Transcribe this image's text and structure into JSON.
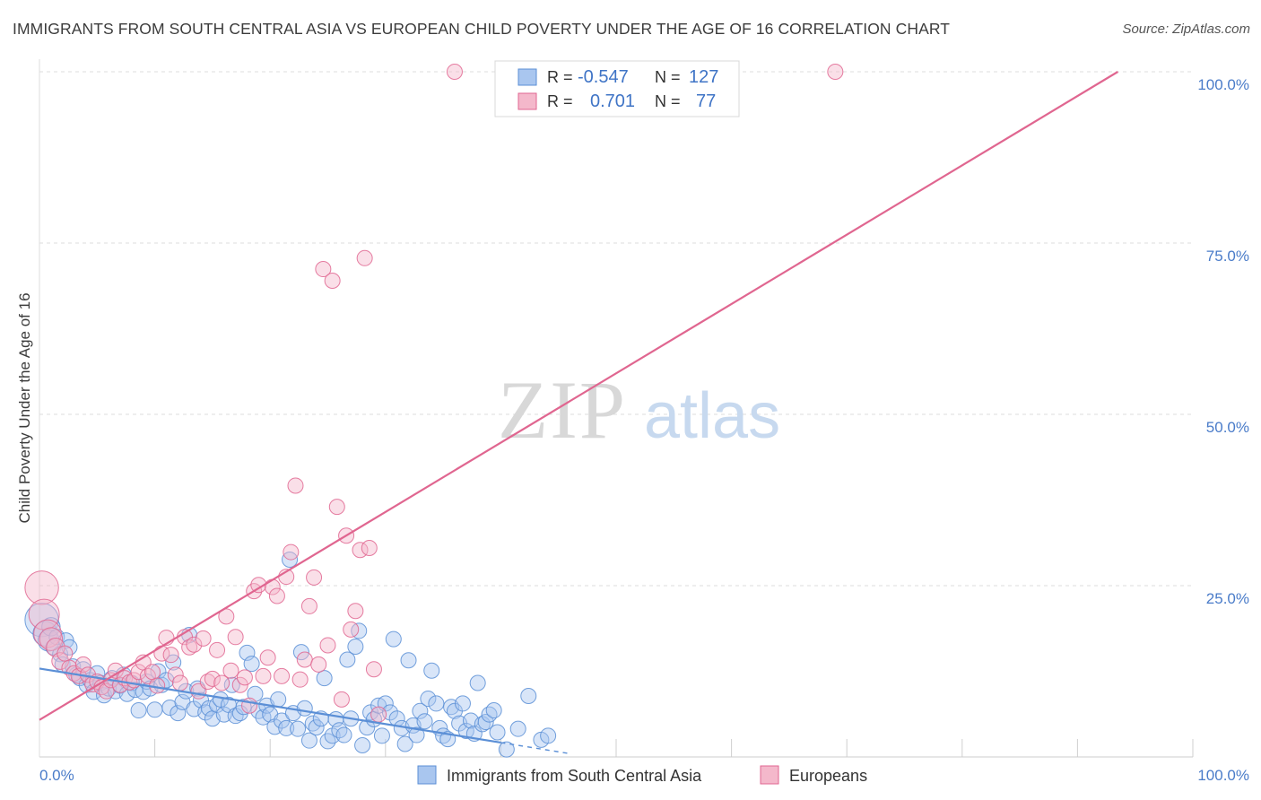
{
  "title": "IMMIGRANTS FROM SOUTH CENTRAL ASIA VS EUROPEAN CHILD POVERTY UNDER THE AGE OF 16 CORRELATION CHART",
  "source": "Source: ZipAtlas.com",
  "watermark": {
    "zip": "ZIP",
    "atlas": "atlas"
  },
  "colors": {
    "blue": "#5b8fd6",
    "blue_fill": "#a9c6ef",
    "pink": "#e06690",
    "pink_fill": "#f4b8cb",
    "axis_text": "#4a7cc9",
    "grid": "#dddddd"
  },
  "chart_data": {
    "type": "scatter",
    "ylabel": "Child Poverty Under the Age of 16",
    "xlabel": "",
    "xlim": [
      0,
      100
    ],
    "ylim": [
      0,
      100
    ],
    "x_tick_labels": [
      "0.0%",
      "100.0%"
    ],
    "y_ticks": [
      25,
      50,
      75,
      100
    ],
    "y_tick_labels": [
      "25.0%",
      "50.0%",
      "75.0%",
      "100.0%"
    ],
    "grid": true,
    "legend_position": "top-center",
    "stats": [
      {
        "r_label": "R =",
        "r": "-0.547",
        "n_label": "N =",
        "n": "127"
      },
      {
        "r_label": "R =",
        "r": "0.701",
        "n_label": "N =",
        "n": "77"
      }
    ],
    "series": [
      {
        "name": "Immigrants from South Central Asia",
        "color": "#5b8fd6",
        "trend": {
          "x": [
            0,
            40
          ],
          "y": [
            12.9,
            2.1
          ],
          "dashed_to_x": 46
        },
        "points": [
          [
            0.2,
            20,
            2.2
          ],
          [
            0.5,
            18,
            1.6
          ],
          [
            0.8,
            17,
            1.4
          ],
          [
            1,
            19,
            1.2
          ],
          [
            1.2,
            16,
            1
          ],
          [
            1.5,
            17.5,
            1
          ],
          [
            1.8,
            15,
            1
          ],
          [
            2,
            13.5,
            1
          ],
          [
            2.3,
            17,
            1
          ],
          [
            2.6,
            16,
            1
          ],
          [
            2.9,
            13.2,
            1
          ],
          [
            3.2,
            12,
            1
          ],
          [
            3.5,
            11.5,
            1
          ],
          [
            3.8,
            12.8,
            1
          ],
          [
            4.1,
            10.5,
            1
          ],
          [
            4.4,
            11.2,
            1
          ],
          [
            4.7,
            9.5,
            1
          ],
          [
            5,
            12.2,
            1
          ],
          [
            5.3,
            10.8,
            1
          ],
          [
            5.6,
            9,
            1
          ],
          [
            6,
            10,
            1
          ],
          [
            6.3,
            11.5,
            1
          ],
          [
            6.6,
            9.6,
            1
          ],
          [
            7,
            10.4,
            1
          ],
          [
            7.3,
            12,
            1
          ],
          [
            7.6,
            9.2,
            1
          ],
          [
            8,
            10.8,
            1
          ],
          [
            8.3,
            9.8,
            1
          ],
          [
            8.6,
            6.8,
            1
          ],
          [
            9,
            9.5,
            1
          ],
          [
            9.3,
            11,
            1
          ],
          [
            9.6,
            10,
            1
          ],
          [
            10,
            6.9,
            1
          ],
          [
            10.3,
            12.5,
            1
          ],
          [
            10.6,
            10.5,
            1
          ],
          [
            11,
            11.2,
            1
          ],
          [
            11.3,
            7.2,
            1
          ],
          [
            11.6,
            13.8,
            1
          ],
          [
            12,
            6.4,
            1
          ],
          [
            12.4,
            8,
            1
          ],
          [
            12.7,
            9.6,
            1
          ],
          [
            13,
            17.8,
            1
          ],
          [
            13.4,
            7,
            1
          ],
          [
            13.7,
            10,
            1
          ],
          [
            14,
            8.3,
            1
          ],
          [
            14.4,
            6.5,
            1
          ],
          [
            14.7,
            7.1,
            1
          ],
          [
            15,
            5.6,
            1
          ],
          [
            15.4,
            7.6,
            1
          ],
          [
            15.7,
            8.4,
            1
          ],
          [
            16,
            6.2,
            1
          ],
          [
            16.4,
            7.6,
            1
          ],
          [
            16.7,
            10.5,
            1
          ],
          [
            17,
            6,
            1
          ],
          [
            17.4,
            6.4,
            1
          ],
          [
            17.7,
            7.3,
            1
          ],
          [
            18,
            15.2,
            1
          ],
          [
            18.4,
            13.6,
            1
          ],
          [
            18.7,
            9.2,
            1
          ],
          [
            19,
            6.7,
            1
          ],
          [
            19.4,
            5.8,
            1
          ],
          [
            19.7,
            7.5,
            1
          ],
          [
            20,
            6.2,
            1
          ],
          [
            20.4,
            4.4,
            1
          ],
          [
            20.7,
            8.4,
            1
          ],
          [
            21,
            5.3,
            1
          ],
          [
            21.4,
            4.2,
            1
          ],
          [
            21.7,
            28.8,
            1
          ],
          [
            22,
            6.4,
            1
          ],
          [
            22.4,
            4.1,
            1
          ],
          [
            22.7,
            15.3,
            1
          ],
          [
            23,
            7.1,
            1
          ],
          [
            23.4,
            2.4,
            1
          ],
          [
            23.7,
            4.9,
            1
          ],
          [
            24,
            4.3,
            1
          ],
          [
            24.4,
            5.6,
            1
          ],
          [
            24.7,
            11.5,
            1
          ],
          [
            25,
            2.3,
            1
          ],
          [
            25.4,
            3.1,
            1
          ],
          [
            25.7,
            5.5,
            1
          ],
          [
            26,
            3.9,
            1
          ],
          [
            26.4,
            3.2,
            1
          ],
          [
            26.7,
            14.2,
            1
          ],
          [
            27,
            5.6,
            1
          ],
          [
            27.4,
            16.1,
            1
          ],
          [
            27.7,
            18.4,
            1
          ],
          [
            28,
            1.7,
            1
          ],
          [
            28.4,
            4.3,
            1
          ],
          [
            28.7,
            6.5,
            1
          ],
          [
            29,
            5.5,
            1
          ],
          [
            29.4,
            7.5,
            1
          ],
          [
            29.7,
            3.1,
            1
          ],
          [
            30,
            7.8,
            1
          ],
          [
            30.4,
            6.5,
            1
          ],
          [
            30.7,
            17.2,
            1
          ],
          [
            31,
            5.6,
            1
          ],
          [
            31.4,
            4.2,
            1
          ],
          [
            31.7,
            1.9,
            1
          ],
          [
            32,
            14.1,
            1
          ],
          [
            32.4,
            4.6,
            1
          ],
          [
            32.7,
            3.2,
            1
          ],
          [
            33,
            6.7,
            1
          ],
          [
            33.4,
            5.2,
            1
          ],
          [
            33.7,
            8.5,
            1
          ],
          [
            34,
            12.6,
            1
          ],
          [
            34.4,
            7.8,
            1
          ],
          [
            34.7,
            4.2,
            1
          ],
          [
            35,
            3.1,
            1
          ],
          [
            35.4,
            2.6,
            1
          ],
          [
            35.7,
            7.3,
            1
          ],
          [
            36,
            6.7,
            1
          ],
          [
            36.4,
            4.9,
            1
          ],
          [
            36.7,
            7.8,
            1
          ],
          [
            37,
            3.8,
            1
          ],
          [
            37.4,
            5.3,
            1
          ],
          [
            37.7,
            3.4,
            1
          ],
          [
            38,
            10.8,
            1
          ],
          [
            38.4,
            4.8,
            1
          ],
          [
            38.7,
            5.1,
            1
          ],
          [
            39,
            6.2,
            1
          ],
          [
            39.4,
            6.8,
            1
          ],
          [
            39.7,
            3.6,
            1
          ],
          [
            40.5,
            1.1,
            1
          ],
          [
            41.5,
            4.1,
            1
          ],
          [
            42.4,
            8.9,
            1
          ],
          [
            43.5,
            2.5,
            1
          ],
          [
            44.1,
            3.1,
            1
          ]
        ]
      },
      {
        "name": "Europeans",
        "color": "#e06690",
        "trend": {
          "x": [
            0,
            93.5
          ],
          "y": [
            5.4,
            100
          ]
        },
        "points": [
          [
            0.2,
            24.7,
            2.2
          ],
          [
            0.4,
            20.8,
            2
          ],
          [
            0.7,
            18,
            1.8
          ],
          [
            1,
            17.2,
            1.5
          ],
          [
            1.4,
            16,
            1.2
          ],
          [
            1.8,
            14,
            1.1
          ],
          [
            2.2,
            15.1,
            1
          ],
          [
            2.6,
            13,
            1
          ],
          [
            3,
            12.2,
            1
          ],
          [
            3.4,
            11.8,
            1
          ],
          [
            3.8,
            13.5,
            1
          ],
          [
            4.2,
            12,
            1
          ],
          [
            4.6,
            10.6,
            1
          ],
          [
            5,
            11,
            1
          ],
          [
            5.4,
            10.2,
            1
          ],
          [
            5.8,
            9.6,
            1
          ],
          [
            6.2,
            11.2,
            1
          ],
          [
            6.6,
            12.6,
            1
          ],
          [
            7,
            10.5,
            1
          ],
          [
            7.4,
            11.5,
            1
          ],
          [
            7.8,
            10.9,
            1
          ],
          [
            8.2,
            11.2,
            1
          ],
          [
            8.6,
            12.4,
            1
          ],
          [
            9,
            13.8,
            1
          ],
          [
            9.4,
            11.8,
            1
          ],
          [
            9.8,
            12.4,
            1
          ],
          [
            10.2,
            10.4,
            1
          ],
          [
            10.6,
            15.1,
            1
          ],
          [
            11,
            17.4,
            1
          ],
          [
            11.4,
            14.9,
            1
          ],
          [
            11.8,
            12,
            1
          ],
          [
            12.2,
            10.8,
            1
          ],
          [
            12.6,
            17.5,
            1
          ],
          [
            13,
            16,
            1
          ],
          [
            13.4,
            16.4,
            1
          ],
          [
            13.8,
            9.6,
            1
          ],
          [
            14.2,
            17.3,
            1
          ],
          [
            14.6,
            11,
            1
          ],
          [
            15,
            11.4,
            1
          ],
          [
            15.4,
            15.6,
            1
          ],
          [
            15.8,
            10.8,
            1
          ],
          [
            16.2,
            20.5,
            1
          ],
          [
            16.6,
            12.6,
            1
          ],
          [
            17,
            17.5,
            1
          ],
          [
            17.4,
            10.5,
            1
          ],
          [
            17.8,
            11.6,
            1
          ],
          [
            18.2,
            7.5,
            1
          ],
          [
            18.6,
            24.2,
            1
          ],
          [
            19,
            25.1,
            1
          ],
          [
            19.4,
            11.8,
            1
          ],
          [
            19.8,
            14.5,
            1
          ],
          [
            20.2,
            24.8,
            1
          ],
          [
            20.6,
            23.5,
            1
          ],
          [
            21,
            11.8,
            1
          ],
          [
            21.4,
            26.3,
            1
          ],
          [
            21.8,
            29.9,
            1
          ],
          [
            22.2,
            39.6,
            1
          ],
          [
            22.6,
            11.3,
            1
          ],
          [
            23,
            14.2,
            1
          ],
          [
            23.4,
            22,
            1
          ],
          [
            23.8,
            26.2,
            1
          ],
          [
            24.2,
            13.5,
            1
          ],
          [
            24.6,
            71.2,
            1
          ],
          [
            25,
            16.3,
            1
          ],
          [
            25.4,
            69.5,
            1
          ],
          [
            25.8,
            36.5,
            1
          ],
          [
            26.2,
            8.4,
            1
          ],
          [
            26.6,
            32.3,
            1
          ],
          [
            27,
            18.6,
            1
          ],
          [
            27.4,
            21.3,
            1
          ],
          [
            27.8,
            30.2,
            1
          ],
          [
            28.2,
            72.8,
            1
          ],
          [
            28.6,
            30.5,
            1
          ],
          [
            29,
            12.8,
            1
          ],
          [
            29.4,
            6.2,
            1
          ],
          [
            36,
            100,
            1
          ],
          [
            69,
            100,
            1
          ]
        ]
      }
    ]
  },
  "legend": {
    "items": [
      "Immigrants from South Central Asia",
      "Europeans"
    ]
  }
}
